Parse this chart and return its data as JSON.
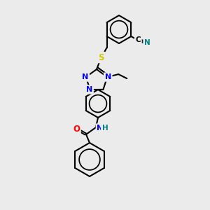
{
  "bg_color": "#ebebeb",
  "bond_color": "#000000",
  "atom_colors": {
    "N": "#0000ff",
    "O": "#ff0000",
    "S": "#cccc00",
    "H": "#008080",
    "C": "#000000"
  },
  "font_size_atom": 7.5,
  "figsize": [
    3.0,
    3.0
  ],
  "dpi": 100
}
